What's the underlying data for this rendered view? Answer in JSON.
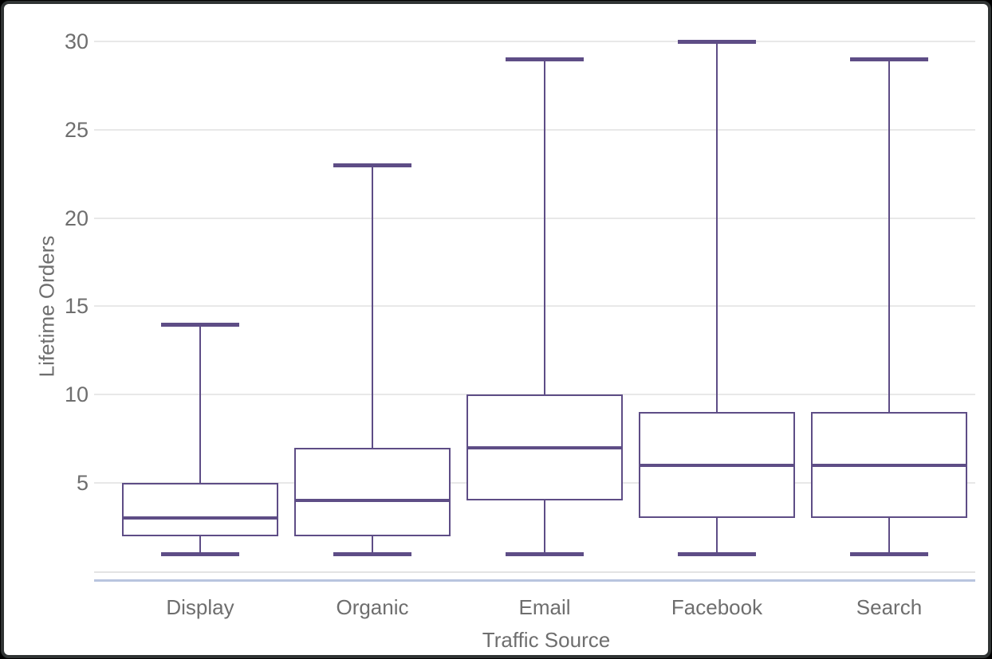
{
  "chart_data": {
    "type": "box",
    "title": "",
    "xlabel": "Traffic Source",
    "ylabel": "Lifetime Orders",
    "categories": [
      "Display",
      "Organic",
      "Email",
      "Facebook",
      "Search"
    ],
    "series": [
      {
        "name": "Display",
        "min": 1,
        "q1": 2,
        "median": 3,
        "q3": 5,
        "max": 14
      },
      {
        "name": "Organic",
        "min": 1,
        "q1": 2,
        "median": 4,
        "q3": 7,
        "max": 23
      },
      {
        "name": "Email",
        "min": 1,
        "q1": 4,
        "median": 7,
        "q3": 10,
        "max": 29
      },
      {
        "name": "Facebook",
        "min": 1,
        "q1": 3,
        "median": 6,
        "q3": 9,
        "max": 30
      },
      {
        "name": "Search",
        "min": 1,
        "q1": 3,
        "median": 6,
        "q3": 9,
        "max": 29
      }
    ],
    "y_ticks": [
      5,
      10,
      15,
      20,
      25,
      30
    ],
    "ylim": [
      0,
      31
    ],
    "grid": true,
    "legend": "none",
    "colors": {
      "box_stroke": "#5e4d86",
      "box_fill": "#ffffff",
      "gridline": "#e8e8e8",
      "baseline": "#e3e3e3",
      "axis_line_blue": "#b9c5df",
      "label_text": "#6e6e6e",
      "card_border": "#303434"
    }
  }
}
